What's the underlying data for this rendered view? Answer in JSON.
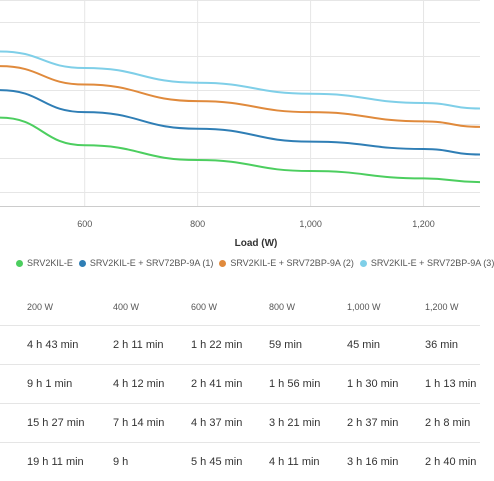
{
  "chart_data": {
    "type": "line",
    "xlabel": "Load (W)",
    "x_ticks": [
      "600",
      "800",
      "1,000",
      "1,200"
    ],
    "x_tick_values": [
      600,
      800,
      1000,
      1200
    ],
    "xlim": [
      450,
      1300
    ],
    "ylim": [
      0,
      100
    ],
    "grid": true,
    "legend_position": "bottom",
    "series": [
      {
        "name": "SRV2KIL-E",
        "color": "#4cce5f",
        "x": [
          450,
          600,
          800,
          1000,
          1200,
          1300
        ],
        "values": [
          48,
          33,
          25,
          19,
          15,
          13
        ]
      },
      {
        "name": "SRV2KIL-E + SRV72BP-9A (1)",
        "color": "#2f7eb5",
        "x": [
          450,
          600,
          800,
          1000,
          1200,
          1300
        ],
        "values": [
          63,
          51,
          42,
          35,
          31,
          28
        ]
      },
      {
        "name": "SRV2KIL-E + SRV72BP-9A (2)",
        "color": "#e08a3c",
        "x": [
          450,
          600,
          800,
          1000,
          1200,
          1300
        ],
        "values": [
          76,
          66,
          57,
          51,
          46,
          43
        ]
      },
      {
        "name": "SRV2KIL-E + SRV72BP-9A (3)",
        "color": "#7fcfe8",
        "x": [
          450,
          600,
          800,
          1000,
          1200,
          1300
        ],
        "values": [
          84,
          75,
          67,
          61,
          56,
          53
        ]
      }
    ]
  },
  "table": {
    "headers": [
      "200 W",
      "400 W",
      "600 W",
      "800 W",
      "1,000 W",
      "1,200 W"
    ],
    "rows": [
      [
        "4 h 43 min",
        "2 h 11 min",
        "1 h 22 min",
        "59 min",
        "45 min",
        "36 min"
      ],
      [
        "9 h 1 min",
        "4 h 12 min",
        "2 h 41 min",
        "1 h 56 min",
        "1 h 30 min",
        "1 h 13 min"
      ],
      [
        "15 h 27 min",
        "7 h 14 min",
        "4 h 37 min",
        "3 h 21 min",
        "2 h 37 min",
        "2 h 8 min"
      ],
      [
        "19 h 11 min",
        "9 h",
        "5 h 45 min",
        "4 h 11 min",
        "3 h 16 min",
        "2 h 40 min"
      ]
    ]
  }
}
